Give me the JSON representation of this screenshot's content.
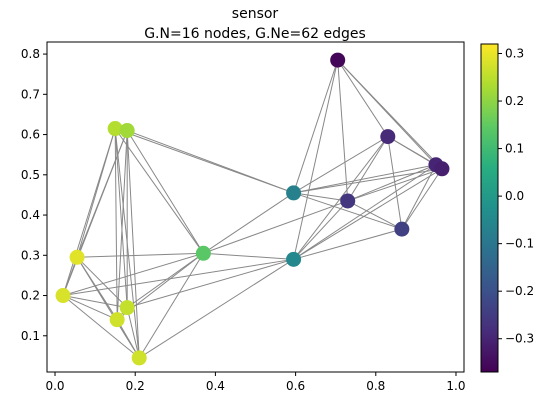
{
  "chart_data": {
    "type": "graph",
    "title": "sensor",
    "subtitle": "G.N=16 nodes, G.Ne=62 edges",
    "xlim": [
      -0.02,
      1.02
    ],
    "ylim": [
      0.01,
      0.83
    ],
    "x_ticks": [
      0.0,
      0.2,
      0.4,
      0.6,
      0.8,
      1.0
    ],
    "x_tick_labels": [
      "0.0",
      "0.2",
      "0.4",
      "0.6",
      "0.8",
      "1.0"
    ],
    "y_ticks": [
      0.1,
      0.2,
      0.3,
      0.4,
      0.5,
      0.6,
      0.7,
      0.8
    ],
    "y_tick_labels": [
      "0.1",
      "0.2",
      "0.3",
      "0.4",
      "0.5",
      "0.6",
      "0.7",
      "0.8"
    ],
    "colorbar": {
      "colormap": "viridis",
      "vmin": -0.37,
      "vmax": 0.32,
      "ticks": [
        0.3,
        0.2,
        0.1,
        0.0,
        -0.1,
        -0.2,
        -0.3
      ],
      "tick_labels": [
        "0.3",
        "0.2",
        "0.1",
        "0.0",
        "−0.1",
        "−0.2",
        "−0.3"
      ]
    },
    "edge_color": "#888888",
    "nodes": [
      {
        "x": 0.15,
        "y": 0.615,
        "value": 0.24
      },
      {
        "x": 0.18,
        "y": 0.61,
        "value": 0.22
      },
      {
        "x": 0.055,
        "y": 0.295,
        "value": 0.29
      },
      {
        "x": 0.02,
        "y": 0.2,
        "value": 0.28
      },
      {
        "x": 0.155,
        "y": 0.14,
        "value": 0.27
      },
      {
        "x": 0.18,
        "y": 0.17,
        "value": 0.26
      },
      {
        "x": 0.21,
        "y": 0.045,
        "value": 0.27
      },
      {
        "x": 0.37,
        "y": 0.305,
        "value": 0.14
      },
      {
        "x": 0.595,
        "y": 0.455,
        "value": -0.07
      },
      {
        "x": 0.595,
        "y": 0.29,
        "value": -0.05
      },
      {
        "x": 0.705,
        "y": 0.785,
        "value": -0.36
      },
      {
        "x": 0.73,
        "y": 0.435,
        "value": -0.26
      },
      {
        "x": 0.83,
        "y": 0.595,
        "value": -0.29
      },
      {
        "x": 0.865,
        "y": 0.365,
        "value": -0.24
      },
      {
        "x": 0.95,
        "y": 0.525,
        "value": -0.3
      },
      {
        "x": 0.965,
        "y": 0.515,
        "value": -0.31
      }
    ],
    "edges": [
      [
        0,
        1
      ],
      [
        0,
        2
      ],
      [
        0,
        3
      ],
      [
        0,
        4
      ],
      [
        0,
        5
      ],
      [
        0,
        6
      ],
      [
        0,
        7
      ],
      [
        0,
        8
      ],
      [
        1,
        2
      ],
      [
        1,
        3
      ],
      [
        1,
        4
      ],
      [
        1,
        5
      ],
      [
        1,
        6
      ],
      [
        1,
        7
      ],
      [
        1,
        8
      ],
      [
        2,
        3
      ],
      [
        2,
        4
      ],
      [
        2,
        5
      ],
      [
        2,
        6
      ],
      [
        2,
        7
      ],
      [
        3,
        4
      ],
      [
        3,
        5
      ],
      [
        3,
        6
      ],
      [
        3,
        7
      ],
      [
        3,
        9
      ],
      [
        4,
        5
      ],
      [
        4,
        6
      ],
      [
        4,
        7
      ],
      [
        5,
        6
      ],
      [
        5,
        7
      ],
      [
        5,
        9
      ],
      [
        6,
        7
      ],
      [
        6,
        9
      ],
      [
        7,
        8
      ],
      [
        7,
        9
      ],
      [
        7,
        11
      ],
      [
        8,
        10
      ],
      [
        8,
        11
      ],
      [
        8,
        12
      ],
      [
        8,
        13
      ],
      [
        8,
        14
      ],
      [
        8,
        15
      ],
      [
        9,
        10
      ],
      [
        9,
        11
      ],
      [
        9,
        12
      ],
      [
        9,
        13
      ],
      [
        9,
        14
      ],
      [
        9,
        15
      ],
      [
        10,
        11
      ],
      [
        10,
        12
      ],
      [
        10,
        14
      ],
      [
        10,
        15
      ],
      [
        11,
        12
      ],
      [
        11,
        13
      ],
      [
        11,
        14
      ],
      [
        11,
        15
      ],
      [
        12,
        13
      ],
      [
        12,
        14
      ],
      [
        12,
        15
      ],
      [
        13,
        14
      ],
      [
        13,
        15
      ],
      [
        14,
        15
      ]
    ]
  }
}
